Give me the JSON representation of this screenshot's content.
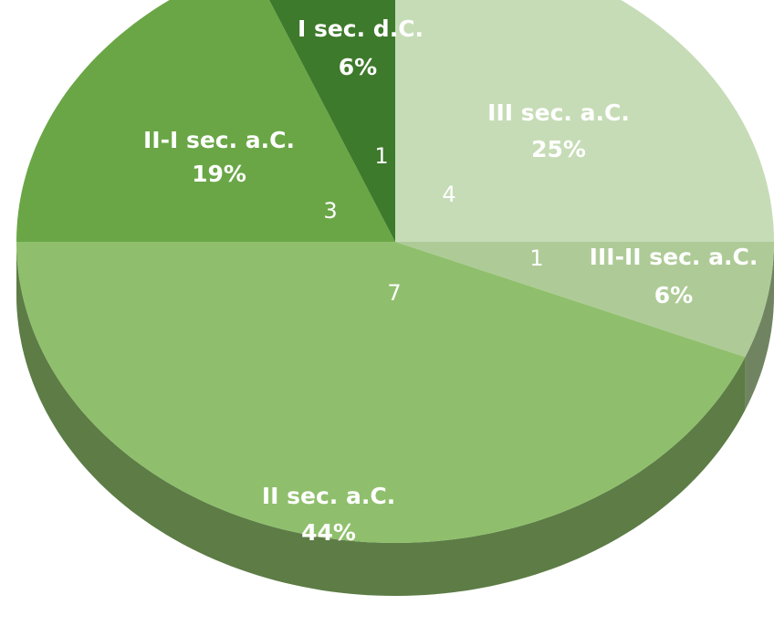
{
  "chart_data": {
    "type": "pie3d",
    "categories": [
      "III sec. a.C.",
      "III-II sec. a.C.",
      "II sec. a.C.",
      "II-I sec. a.C.",
      "I sec. d.C."
    ],
    "values": [
      4,
      1,
      7,
      3,
      1
    ],
    "value_labels": [
      "25%",
      "6%",
      "44%",
      "19%",
      "6%"
    ],
    "colors": [
      "#c6dcb6",
      "#aecb97",
      "#8fbf6c",
      "#6aa646",
      "#3d7a2b"
    ]
  }
}
